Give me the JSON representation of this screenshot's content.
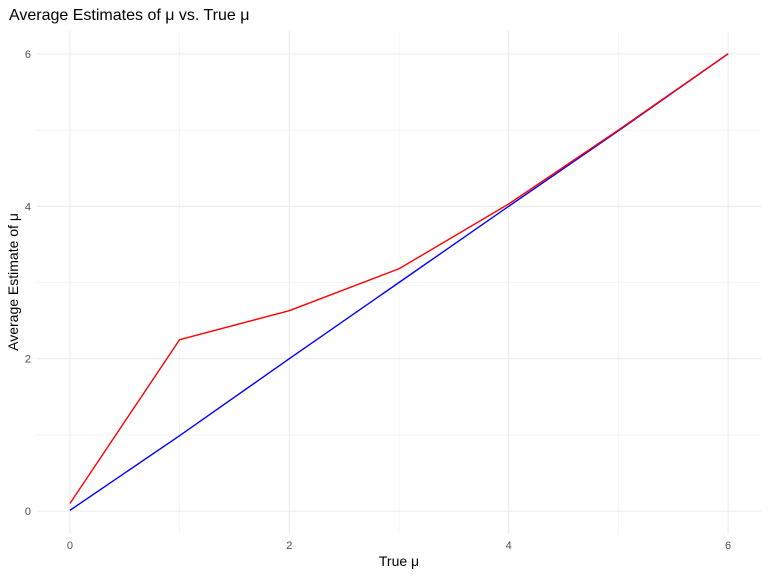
{
  "chart_data": {
    "type": "line",
    "title": "Average Estimates of μ vs. True μ",
    "xlabel": "True μ",
    "ylabel": "Average Estimate of μ",
    "xlim": [
      -0.3,
      6.3
    ],
    "ylim": [
      -0.3,
      6.3
    ],
    "x_ticks": [
      0,
      2,
      4,
      6
    ],
    "y_ticks": [
      0,
      2,
      4,
      6
    ],
    "x_minor_ticks": [
      1,
      3,
      5
    ],
    "y_minor_ticks": [
      1,
      3,
      5
    ],
    "grid": true,
    "legend": "none",
    "x": [
      0,
      1,
      2,
      3,
      4,
      5,
      6
    ],
    "series": [
      {
        "color": "#0000ff",
        "values": [
          0.01,
          0.99,
          2.0,
          3.0,
          4.0,
          4.99,
          6.0
        ]
      },
      {
        "color": "#ff0000",
        "values": [
          0.1,
          2.25,
          2.63,
          3.18,
          4.03,
          5.0,
          6.0
        ]
      }
    ]
  }
}
